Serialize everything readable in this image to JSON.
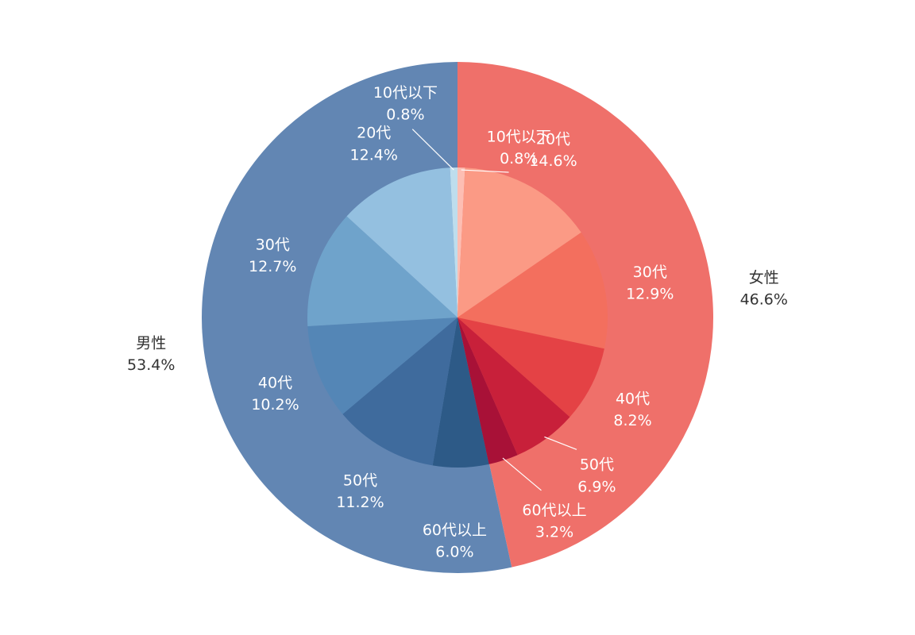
{
  "chart_data": {
    "type": "pie",
    "title": "",
    "legend": "none",
    "outer_ring": [
      {
        "name": "女性",
        "value": 46.6,
        "value_label": "46.6%",
        "color": "#EF706A"
      },
      {
        "name": "男性",
        "value": 53.4,
        "value_label": "53.4%",
        "color": "#6286B3"
      }
    ],
    "inner_pie": [
      {
        "name": "10代以下",
        "group": "女性",
        "value": 0.8,
        "value_label": "0.8%",
        "color": "#FDBEB3"
      },
      {
        "name": "20代",
        "group": "女性",
        "value": 14.6,
        "value_label": "14.6%",
        "color": "#FB9A85"
      },
      {
        "name": "30代",
        "group": "女性",
        "value": 12.9,
        "value_label": "12.9%",
        "color": "#F36F5E"
      },
      {
        "name": "40代",
        "group": "女性",
        "value": 8.2,
        "value_label": "8.2%",
        "color": "#E44245"
      },
      {
        "name": "50代",
        "group": "女性",
        "value": 6.9,
        "value_label": "6.9%",
        "color": "#C8203A"
      },
      {
        "name": "60代以上",
        "group": "女性",
        "value": 3.2,
        "value_label": "3.2%",
        "color": "#A81137"
      },
      {
        "name": "60代以上",
        "group": "男性",
        "value": 6.0,
        "value_label": "6.0%",
        "color": "#2D5A87"
      },
      {
        "name": "50代",
        "group": "男性",
        "value": 11.2,
        "value_label": "11.2%",
        "color": "#3F6B9D"
      },
      {
        "name": "40代",
        "group": "男性",
        "value": 10.2,
        "value_label": "10.2%",
        "color": "#5486B6"
      },
      {
        "name": "30代",
        "group": "男性",
        "value": 12.7,
        "value_label": "12.7%",
        "color": "#6FA3CB"
      },
      {
        "name": "20代",
        "group": "男性",
        "value": 12.4,
        "value_label": "12.4%",
        "color": "#94C0E0"
      },
      {
        "name": "10代以下",
        "group": "男性",
        "value": 0.8,
        "value_label": "0.8%",
        "color": "#BEDDED"
      }
    ]
  }
}
